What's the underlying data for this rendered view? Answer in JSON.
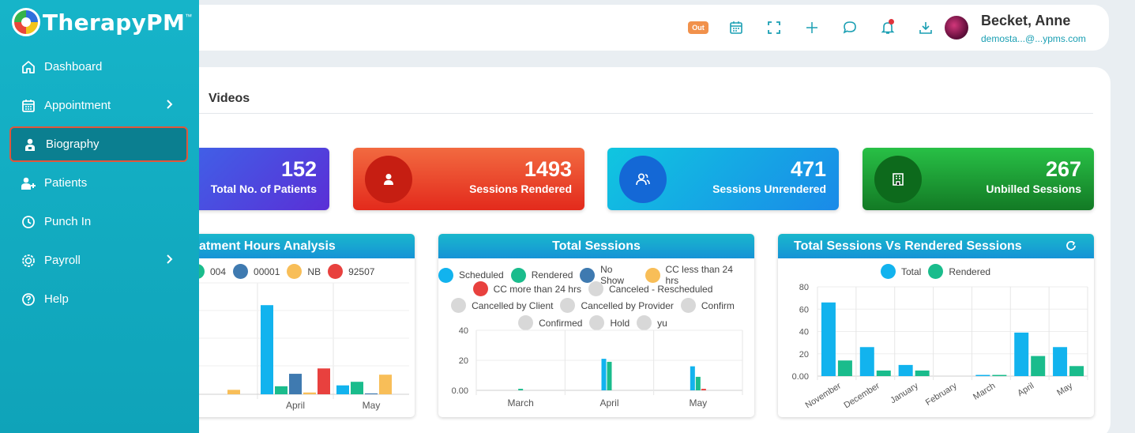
{
  "app": {
    "name": "TherapyPM",
    "tm": "™"
  },
  "sidebar": {
    "items": [
      {
        "label": "Dashboard",
        "icon": "home-icon"
      },
      {
        "label": "Appointment",
        "icon": "calendar-icon",
        "chevron": true
      },
      {
        "label": "Biography",
        "icon": "user-badge-icon",
        "active": true
      },
      {
        "label": "Patients",
        "icon": "user-plus-icon"
      },
      {
        "label": "Punch In",
        "icon": "clock-icon"
      },
      {
        "label": "Payroll",
        "icon": "money-icon",
        "chevron": true
      },
      {
        "label": "Help",
        "icon": "help-icon"
      }
    ]
  },
  "topbar": {
    "out_badge": "Out",
    "icons": [
      "calendar-icon",
      "fullscreen-icon",
      "plus-icon",
      "chat-icon",
      "bell-icon",
      "download-icon"
    ],
    "user_name": "Becket, Anne",
    "user_email": "demosta...@...ypms.com"
  },
  "main": {
    "tab": "Videos"
  },
  "stats": [
    {
      "value": "152",
      "label": "Total No. of Patients",
      "color": "#4f3be0",
      "icon": "users-icon"
    },
    {
      "value": "1493",
      "label": "Sessions Rendered",
      "color": "#e8402c",
      "icon": "user-icon"
    },
    {
      "value": "471",
      "label": "Sessions Unrendered",
      "color": "#1aa3e8",
      "icon": "users-icon"
    },
    {
      "value": "267",
      "label": "Unbilled Sessions",
      "color": "#1b9c34",
      "icon": "building-icon"
    }
  ],
  "charts": {
    "treatment": {
      "title": "atment Hours Analysis",
      "legend": [
        {
          "name": "004",
          "color": "#1abc8c"
        },
        {
          "name": "00001",
          "color": "#3f7ab0"
        },
        {
          "name": "NB",
          "color": "#f8be58"
        },
        {
          "name": "92507",
          "color": "#e8413e"
        }
      ]
    },
    "total_sessions": {
      "title": "Total Sessions",
      "legend_rows": [
        [
          {
            "name": "Scheduled",
            "color": "#12b3ee"
          },
          {
            "name": "Rendered",
            "color": "#1abc8c"
          },
          {
            "name": "No Show",
            "color": "#3f7ab0"
          },
          {
            "name": "CC less than 24 hrs",
            "color": "#f8be58"
          }
        ],
        [
          {
            "name": "CC more than 24 hrs",
            "color": "#e8413e"
          },
          {
            "name": "Canceled - Rescheduled",
            "color": "#d8d8d8"
          }
        ],
        [
          {
            "name": "Cancelled by Client",
            "color": "#d8d8d8"
          },
          {
            "name": "Cancelled by Provider",
            "color": "#d8d8d8"
          },
          {
            "name": "Confirm",
            "color": "#d8d8d8"
          }
        ],
        [
          {
            "name": "Confirmed",
            "color": "#d8d8d8"
          },
          {
            "name": "Hold",
            "color": "#d8d8d8"
          },
          {
            "name": "yu",
            "color": "#d8d8d8"
          }
        ]
      ]
    },
    "vs": {
      "title": "Total Sessions Vs Rendered Sessions",
      "legend": [
        {
          "name": "Total",
          "color": "#12b3ee"
        },
        {
          "name": "Rendered",
          "color": "#1abc8c"
        }
      ]
    }
  },
  "chart_data": [
    {
      "type": "bar",
      "title": "atment Hours Analysis",
      "categories": [
        "",
        "April",
        "May"
      ],
      "series": [
        {
          "name": "",
          "values": [
            0,
            100,
            10
          ]
        },
        {
          "name": "004",
          "values": [
            0,
            9,
            14
          ]
        },
        {
          "name": "00001",
          "values": [
            0,
            23,
            1
          ]
        },
        {
          "name": "NB",
          "values": [
            5,
            2,
            22
          ]
        },
        {
          "name": "92507",
          "values": [
            0,
            29,
            0
          ]
        }
      ],
      "ylim": [
        0,
        125
      ]
    },
    {
      "type": "bar",
      "title": "Total Sessions",
      "categories": [
        "March",
        "April",
        "May"
      ],
      "series": [
        {
          "name": "Scheduled",
          "values": [
            0,
            21,
            16
          ]
        },
        {
          "name": "Rendered",
          "values": [
            1,
            19,
            9
          ]
        },
        {
          "name": "CC more than 24 hrs",
          "values": [
            0,
            0,
            1
          ]
        }
      ],
      "yticks": [
        "0.00",
        "20",
        "40"
      ],
      "ylim": [
        0,
        40
      ]
    },
    {
      "type": "bar",
      "title": "Total Sessions Vs Rendered Sessions",
      "categories": [
        "November",
        "December",
        "January",
        "February",
        "March",
        "April",
        "May"
      ],
      "series": [
        {
          "name": "Total",
          "values": [
            66,
            26,
            10,
            0,
            1,
            39,
            26
          ]
        },
        {
          "name": "Rendered",
          "values": [
            14,
            5,
            5,
            0,
            1,
            18,
            9
          ]
        }
      ],
      "yticks": [
        "0.00",
        "20",
        "40",
        "60",
        "80"
      ],
      "ylim": [
        0,
        80
      ]
    }
  ]
}
